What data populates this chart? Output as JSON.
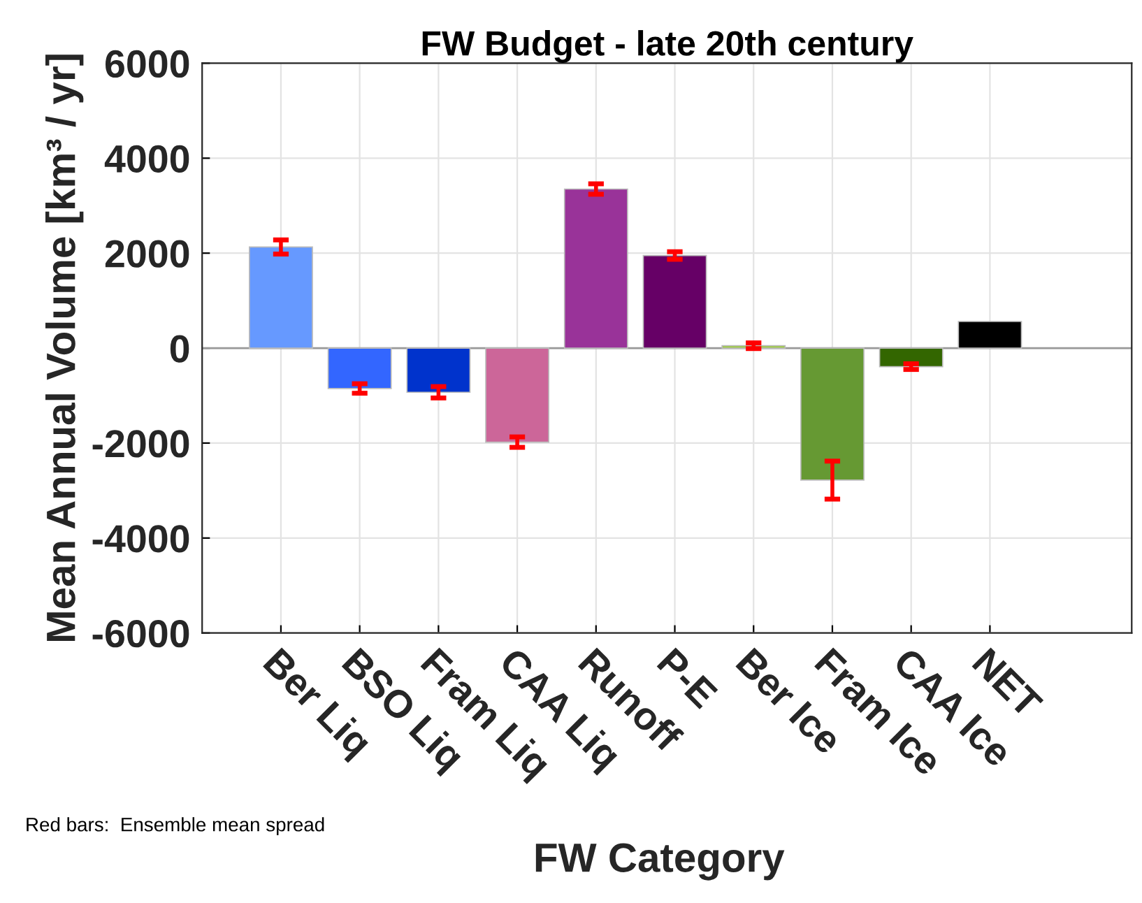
{
  "chart_data": {
    "type": "bar",
    "title": "FW Budget - late 20th century",
    "xlabel": "FW Category",
    "ylabel": "Mean Annual Volume [km³ / yr]",
    "categories": [
      "Ber Liq",
      "BSO Liq",
      "Fram Liq",
      "CAA Liq",
      "Runoff",
      "P-E",
      "Ber Ice",
      "Fram Ice",
      "CAA Ice",
      "NET"
    ],
    "values": [
      2130,
      -850,
      -930,
      -1980,
      3350,
      1950,
      50,
      -2780,
      -390,
      560
    ],
    "colors": [
      "#6699ff",
      "#3366ff",
      "#0033cc",
      "#cc6699",
      "#993399",
      "#660066",
      "#99cc33",
      "#669933",
      "#336600",
      "#000000"
    ],
    "errors": [
      150,
      100,
      120,
      110,
      110,
      80,
      60,
      400,
      60,
      null
    ],
    "ylim": [
      -6000,
      6000
    ],
    "yticks": [
      -6000,
      -4000,
      -2000,
      0,
      2000,
      4000,
      6000
    ],
    "grid": true,
    "annotations": [
      "Red bars:  Ensemble mean spread"
    ]
  }
}
